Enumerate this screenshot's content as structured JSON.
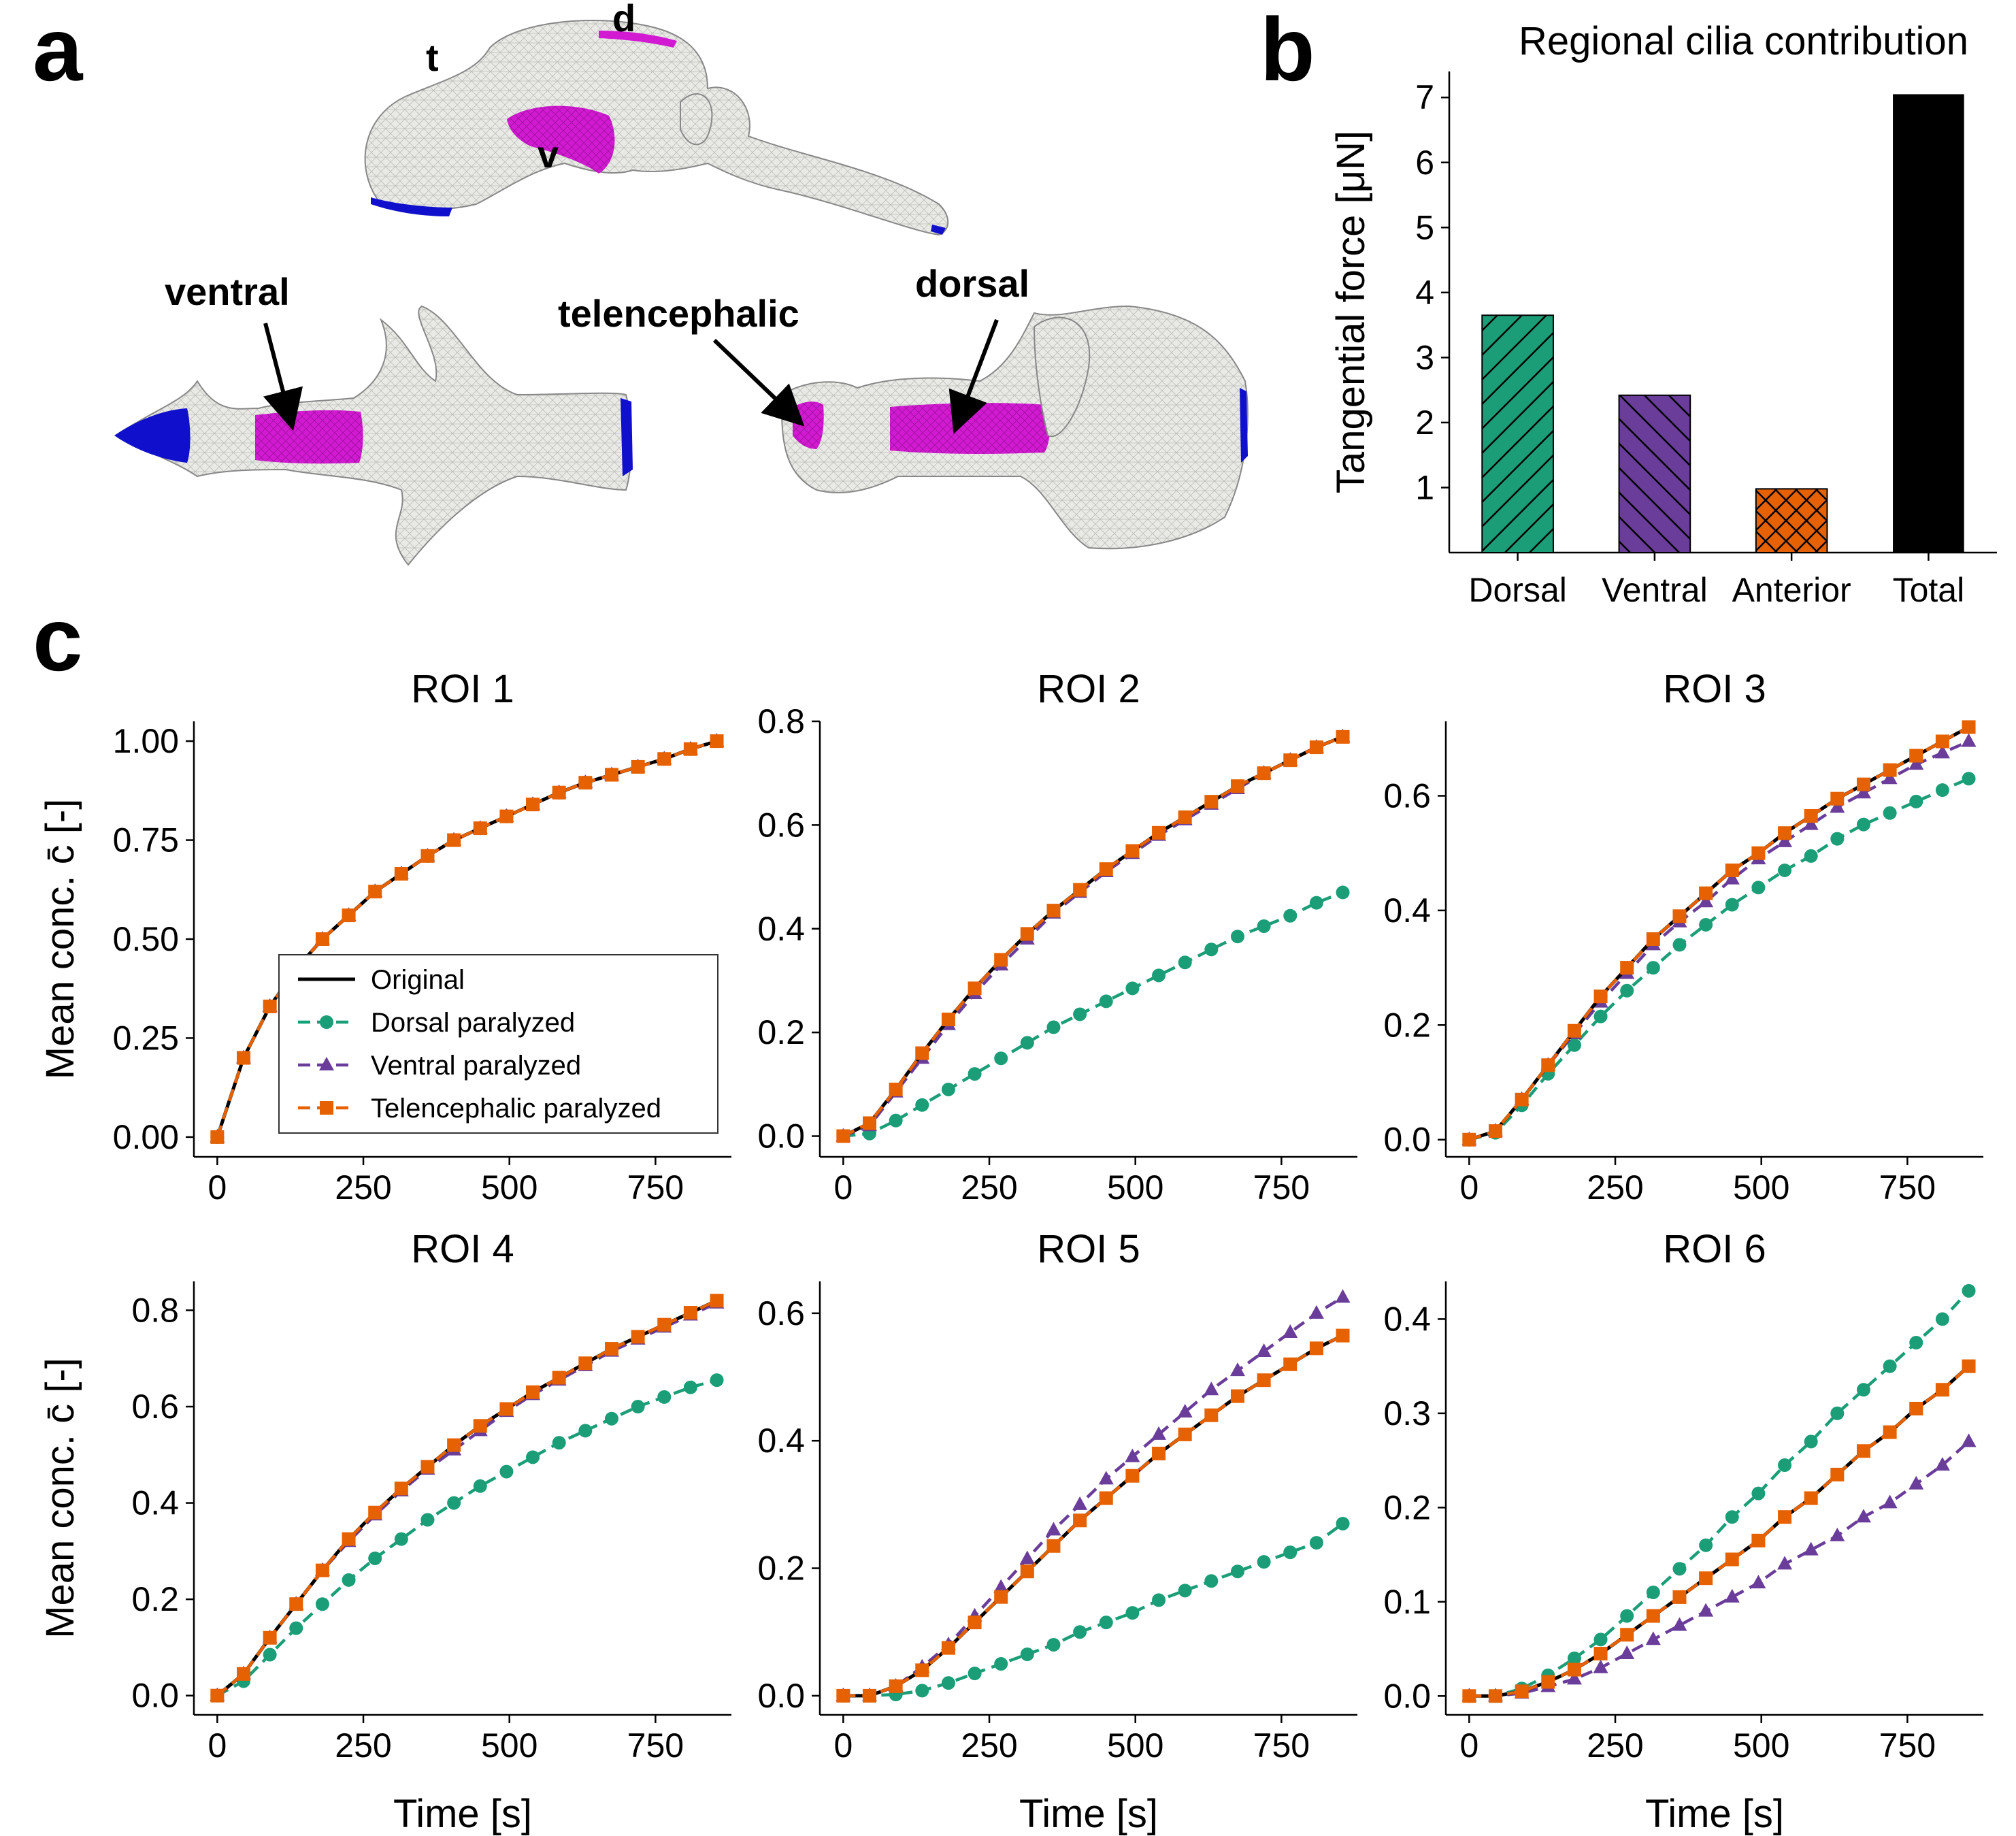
{
  "panel_labels": {
    "a": "a",
    "b": "b",
    "c": "c"
  },
  "panel_a": {
    "labels": {
      "t": "t",
      "d": "d",
      "v": "v",
      "ventral": "ventral",
      "telencephalic": "telencephalic",
      "dorsal": "dorsal"
    },
    "colors": {
      "mesh": "#e9e9e6",
      "highlight": "#d11ad1",
      "anterior": "#1010cc"
    }
  },
  "chart_data": [
    {
      "id": "b",
      "type": "bar",
      "title": "Regional cilia contribution",
      "categories": [
        "Dorsal",
        "Ventral",
        "Anterior",
        "Total"
      ],
      "values": [
        3.65,
        2.42,
        0.98,
        7.05
      ],
      "ylabel": "Tangential force [μN]",
      "ylim": [
        0,
        7.4
      ],
      "yticks": [
        1,
        2,
        3,
        4,
        5,
        6,
        7
      ],
      "colors": [
        "#1b9e77",
        "#6a3d9a",
        "#e66101",
        "#000000"
      ],
      "hatches": [
        "diagonal",
        "back-diagonal",
        "cross",
        "none"
      ]
    },
    {
      "id": "c",
      "type": "line",
      "xlabel": "Time [s]",
      "ylabel": "Mean conc. c̄ [-]",
      "legend": {
        "position": "inside",
        "panel": "ROI 1"
      },
      "x": [
        0,
        45,
        90,
        135,
        180,
        225,
        270,
        315,
        360,
        405,
        450,
        495,
        540,
        585,
        630,
        675,
        720,
        765,
        810,
        855
      ],
      "xticks": [
        0,
        250,
        500,
        750
      ],
      "series_styles": [
        {
          "name": "Original",
          "color": "#000000",
          "dash": "solid",
          "marker": "none"
        },
        {
          "name": "Dorsal paralyzed",
          "color": "#1b9e77",
          "dash": "dashed",
          "marker": "circle"
        },
        {
          "name": "Ventral paralyzed",
          "color": "#6a3d9a",
          "dash": "dashed",
          "marker": "triangle"
        },
        {
          "name": "Telencephalic paralyzed",
          "color": "#e66101",
          "dash": "dashed",
          "marker": "square"
        }
      ],
      "subplots": [
        {
          "title": "ROI 1",
          "ylim": [
            -0.05,
            1.05
          ],
          "yticks": [
            0.0,
            0.25,
            0.5,
            0.75,
            1.0
          ],
          "yformat": 2,
          "series": [
            [
              0,
              0.2,
              0.33,
              0.425,
              0.5,
              0.56,
              0.62,
              0.665,
              0.71,
              0.75,
              0.78,
              0.81,
              0.84,
              0.87,
              0.895,
              0.915,
              0.935,
              0.955,
              0.98,
              1.0
            ],
            [
              0,
              0.2,
              0.33,
              0.425,
              0.5,
              0.56,
              0.62,
              0.665,
              0.71,
              0.75,
              0.78,
              0.81,
              0.84,
              0.87,
              0.895,
              0.915,
              0.935,
              0.955,
              0.98,
              1.0
            ],
            [
              0,
              0.2,
              0.33,
              0.425,
              0.5,
              0.56,
              0.62,
              0.665,
              0.71,
              0.75,
              0.78,
              0.81,
              0.84,
              0.87,
              0.895,
              0.915,
              0.935,
              0.955,
              0.98,
              1.0
            ],
            [
              0,
              0.2,
              0.33,
              0.425,
              0.5,
              0.56,
              0.62,
              0.665,
              0.71,
              0.75,
              0.78,
              0.81,
              0.84,
              0.87,
              0.895,
              0.915,
              0.935,
              0.955,
              0.98,
              1.0
            ]
          ]
        },
        {
          "title": "ROI 2",
          "ylim": [
            -0.04,
            0.8
          ],
          "yticks": [
            0.0,
            0.2,
            0.4,
            0.6,
            0.8
          ],
          "yformat": 1,
          "series": [
            [
              0,
              0.025,
              0.09,
              0.16,
              0.225,
              0.285,
              0.34,
              0.39,
              0.435,
              0.475,
              0.515,
              0.55,
              0.585,
              0.615,
              0.645,
              0.675,
              0.7,
              0.725,
              0.75,
              0.77
            ],
            [
              0,
              0.005,
              0.03,
              0.06,
              0.09,
              0.12,
              0.15,
              0.18,
              0.21,
              0.235,
              0.26,
              0.285,
              0.31,
              0.335,
              0.36,
              0.385,
              0.405,
              0.425,
              0.45,
              0.47
            ],
            [
              0,
              0.02,
              0.085,
              0.15,
              0.215,
              0.275,
              0.33,
              0.38,
              0.43,
              0.47,
              0.51,
              0.545,
              0.58,
              0.61,
              0.64,
              0.67,
              0.7,
              0.725,
              0.75,
              0.77
            ],
            [
              0,
              0.025,
              0.09,
              0.16,
              0.225,
              0.285,
              0.34,
              0.39,
              0.435,
              0.475,
              0.515,
              0.55,
              0.585,
              0.615,
              0.645,
              0.675,
              0.7,
              0.725,
              0.75,
              0.77
            ]
          ]
        },
        {
          "title": "ROI 3",
          "ylim": [
            -0.03,
            0.73
          ],
          "yticks": [
            0.0,
            0.2,
            0.4,
            0.6
          ],
          "yformat": 1,
          "series": [
            [
              0,
              0.015,
              0.07,
              0.13,
              0.19,
              0.25,
              0.3,
              0.35,
              0.39,
              0.43,
              0.47,
              0.5,
              0.535,
              0.565,
              0.595,
              0.62,
              0.645,
              0.67,
              0.695,
              0.72
            ],
            [
              0,
              0.012,
              0.06,
              0.115,
              0.165,
              0.215,
              0.26,
              0.3,
              0.34,
              0.375,
              0.41,
              0.44,
              0.47,
              0.495,
              0.525,
              0.55,
              0.57,
              0.59,
              0.61,
              0.63
            ],
            [
              0,
              0.015,
              0.07,
              0.13,
              0.185,
              0.24,
              0.29,
              0.34,
              0.38,
              0.415,
              0.455,
              0.49,
              0.52,
              0.55,
              0.58,
              0.605,
              0.63,
              0.655,
              0.675,
              0.695
            ],
            [
              0,
              0.015,
              0.07,
              0.13,
              0.19,
              0.25,
              0.3,
              0.35,
              0.39,
              0.43,
              0.47,
              0.5,
              0.535,
              0.565,
              0.595,
              0.62,
              0.645,
              0.67,
              0.695,
              0.72
            ]
          ]
        },
        {
          "title": "ROI 4",
          "ylim": [
            -0.04,
            0.86
          ],
          "yticks": [
            0.0,
            0.2,
            0.4,
            0.6,
            0.8
          ],
          "yformat": 1,
          "series": [
            [
              0,
              0.045,
              0.12,
              0.19,
              0.26,
              0.325,
              0.38,
              0.43,
              0.475,
              0.52,
              0.56,
              0.595,
              0.63,
              0.66,
              0.69,
              0.72,
              0.745,
              0.77,
              0.795,
              0.82
            ],
            [
              0,
              0.03,
              0.085,
              0.14,
              0.19,
              0.24,
              0.285,
              0.325,
              0.365,
              0.4,
              0.435,
              0.465,
              0.495,
              0.525,
              0.55,
              0.575,
              0.6,
              0.62,
              0.64,
              0.655
            ],
            [
              0,
              0.045,
              0.12,
              0.19,
              0.26,
              0.32,
              0.375,
              0.425,
              0.47,
              0.51,
              0.55,
              0.59,
              0.625,
              0.655,
              0.685,
              0.715,
              0.74,
              0.765,
              0.79,
              0.815
            ],
            [
              0,
              0.045,
              0.12,
              0.19,
              0.26,
              0.325,
              0.38,
              0.43,
              0.475,
              0.52,
              0.56,
              0.595,
              0.63,
              0.66,
              0.69,
              0.72,
              0.745,
              0.77,
              0.795,
              0.82
            ]
          ]
        },
        {
          "title": "ROI 5",
          "ylim": [
            -0.03,
            0.65
          ],
          "yticks": [
            0.0,
            0.2,
            0.4,
            0.6
          ],
          "yformat": 1,
          "series": [
            [
              0,
              0.0,
              0.015,
              0.04,
              0.075,
              0.115,
              0.155,
              0.195,
              0.235,
              0.275,
              0.31,
              0.345,
              0.38,
              0.41,
              0.44,
              0.47,
              0.495,
              0.52,
              0.545,
              0.565
            ],
            [
              0,
              0.0,
              0.002,
              0.008,
              0.02,
              0.035,
              0.05,
              0.065,
              0.08,
              0.1,
              0.115,
              0.13,
              0.15,
              0.165,
              0.18,
              0.195,
              0.21,
              0.225,
              0.24,
              0.27
            ],
            [
              0,
              0.0,
              0.015,
              0.045,
              0.08,
              0.125,
              0.17,
              0.215,
              0.26,
              0.3,
              0.34,
              0.375,
              0.41,
              0.445,
              0.48,
              0.51,
              0.54,
              0.57,
              0.6,
              0.625
            ],
            [
              0,
              0.0,
              0.015,
              0.04,
              0.075,
              0.115,
              0.155,
              0.195,
              0.235,
              0.275,
              0.31,
              0.345,
              0.38,
              0.41,
              0.44,
              0.47,
              0.495,
              0.52,
              0.545,
              0.565
            ]
          ]
        },
        {
          "title": "ROI 6",
          "ylim": [
            -0.02,
            0.44
          ],
          "yticks": [
            0.0,
            0.1,
            0.2,
            0.3,
            0.4
          ],
          "yformat": 1,
          "series": [
            [
              0,
              0.0,
              0.005,
              0.015,
              0.028,
              0.045,
              0.065,
              0.085,
              0.105,
              0.125,
              0.145,
              0.165,
              0.19,
              0.21,
              0.235,
              0.26,
              0.28,
              0.305,
              0.325,
              0.35
            ],
            [
              0,
              0.0,
              0.008,
              0.022,
              0.04,
              0.06,
              0.085,
              0.11,
              0.135,
              0.16,
              0.19,
              0.215,
              0.245,
              0.27,
              0.3,
              0.325,
              0.35,
              0.375,
              0.4,
              0.43
            ],
            [
              0,
              0.0,
              0.003,
              0.01,
              0.018,
              0.03,
              0.045,
              0.06,
              0.075,
              0.09,
              0.105,
              0.12,
              0.14,
              0.155,
              0.17,
              0.19,
              0.205,
              0.225,
              0.245,
              0.27
            ],
            [
              0,
              0.0,
              0.005,
              0.015,
              0.028,
              0.045,
              0.065,
              0.085,
              0.105,
              0.125,
              0.145,
              0.165,
              0.19,
              0.21,
              0.235,
              0.26,
              0.28,
              0.305,
              0.325,
              0.35
            ]
          ]
        }
      ]
    }
  ]
}
